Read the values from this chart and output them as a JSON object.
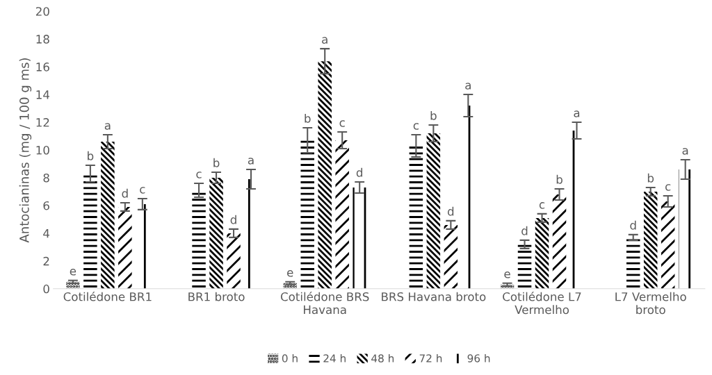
{
  "chart_data": {
    "type": "bar",
    "ylabel": "Antocianinas (mg / 100 g ms)",
    "categories": [
      "Cotilédone BR1",
      "BR1 broto",
      "Cotilédone BRS Havana",
      "BRS Havana broto",
      "Cotilédone L7 Vermelho",
      "L7 Vermelho broto"
    ],
    "series": [
      {
        "name": "0 h",
        "color": "#000000",
        "values": [
          0.5,
          null,
          0.4,
          null,
          0.3,
          null
        ],
        "errors": [
          0.1,
          null,
          0.1,
          null,
          0.1,
          null
        ],
        "value_labels": [
          "e",
          null,
          "e",
          null,
          "e",
          null
        ]
      },
      {
        "name": "24 h",
        "color": "#000000",
        "values": [
          8.3,
          7.1,
          10.7,
          10.3,
          3.2,
          3.7
        ],
        "errors": [
          0.6,
          0.5,
          0.9,
          0.8,
          0.3,
          0.2
        ],
        "value_labels": [
          "b",
          "c",
          "b",
          "c",
          "d",
          "d"
        ]
      },
      {
        "name": "48 h",
        "color": "#000000",
        "values": [
          10.6,
          8.0,
          16.4,
          11.2,
          5.1,
          7.0
        ],
        "errors": [
          0.5,
          0.4,
          0.9,
          0.6,
          0.3,
          0.3
        ],
        "value_labels": [
          "a",
          "b",
          "a",
          "b",
          "c",
          "b"
        ]
      },
      {
        "name": "72 h",
        "color": "#000000",
        "values": [
          5.9,
          4.0,
          10.7,
          4.6,
          6.8,
          6.3
        ],
        "errors": [
          0.3,
          0.3,
          0.6,
          0.3,
          0.4,
          0.4
        ],
        "value_labels": [
          "d",
          "d",
          "c",
          "d",
          "b",
          "c"
        ]
      },
      {
        "name": "96 h",
        "color": "#000000",
        "values": [
          6.1,
          7.9,
          7.3,
          13.2,
          11.4,
          8.6
        ],
        "errors": [
          0.4,
          0.7,
          0.4,
          0.8,
          0.6,
          0.7
        ],
        "value_labels": [
          "c",
          "a",
          "d",
          "a",
          "a",
          "a"
        ]
      }
    ],
    "ylim": [
      0,
      20
    ],
    "yticks": [
      0,
      2,
      4,
      6,
      8,
      10,
      12,
      14,
      16,
      18,
      20
    ],
    "grid": false,
    "legend": "bottom"
  }
}
